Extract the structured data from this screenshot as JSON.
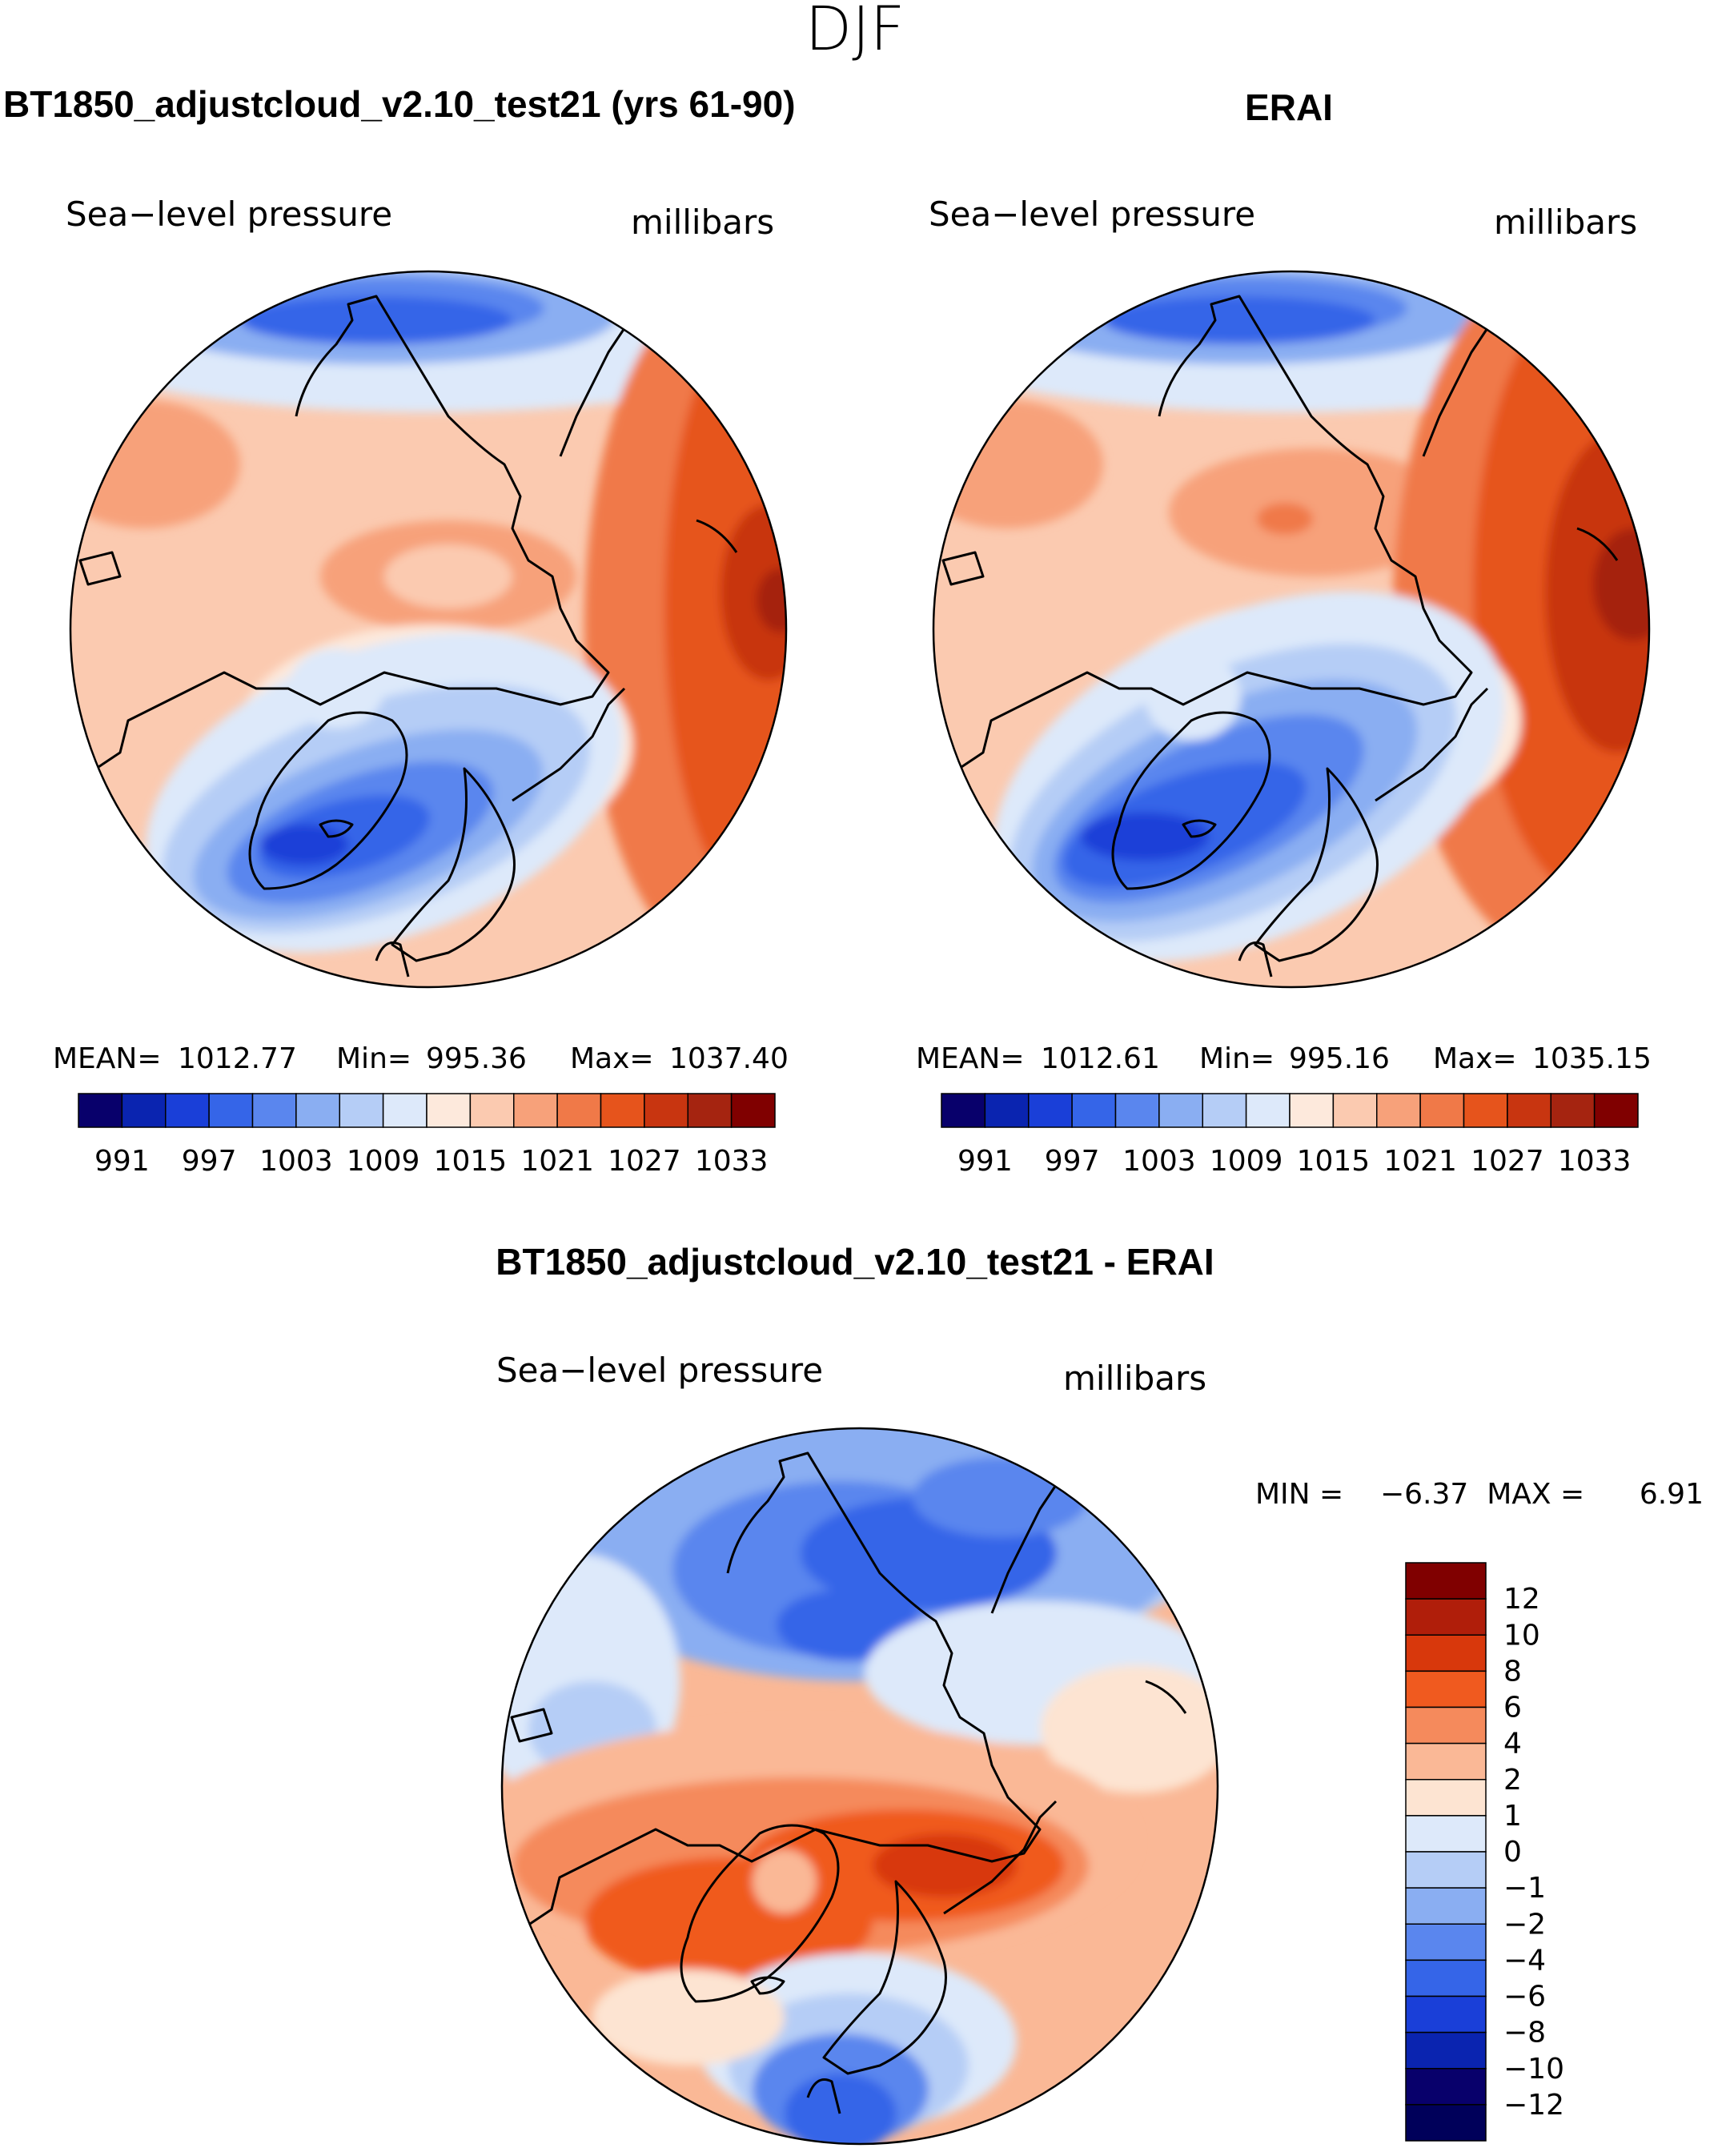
{
  "suptitle": "DJF",
  "panels": [
    {
      "title": "BT1850_adjustcloud_v2.10_test21 (yrs 61-90)",
      "left_label": "Sea−level pressure",
      "right_label": "millibars",
      "stats": {
        "mean_label": "MEAN=",
        "mean": "1012.77",
        "min_label": "Min=",
        "min": "995.36",
        "max_label": "Max=",
        "max": "1037.40"
      }
    },
    {
      "title": "ERAI",
      "left_label": "Sea−level pressure",
      "right_label": "millibars",
      "stats": {
        "mean_label": "MEAN=",
        "mean": "1012.61",
        "min_label": "Min=",
        "min": "995.16",
        "max_label": "Max=",
        "max": "1035.15"
      }
    },
    {
      "title": "BT1850_adjustcloud_v2.10_test21 - ERAI",
      "left_label": "Sea−level pressure",
      "right_label": "millibars",
      "stats_text": "MIN =    −6.37  MAX =      6.91"
    }
  ],
  "chart_data": [
    {
      "type": "heatmap",
      "projection": "north-polar-stereographic",
      "variable": "Sea-level pressure",
      "units": "millibars",
      "title": "BT1850_adjustcloud_v2.10_test21 (yrs 61-90)",
      "colorbar_ticks": [
        "991",
        "997",
        "1003",
        "1009",
        "1015",
        "1021",
        "1027",
        "1033"
      ],
      "colorbar_colors": [
        "#08006b",
        "#0a24b0",
        "#1a3fd8",
        "#3565e8",
        "#5a86ee",
        "#8aaef2",
        "#b5cdf6",
        "#dde9fa",
        "#fde9dc",
        "#fbcab0",
        "#f7a17a",
        "#f07948",
        "#e6541c",
        "#c83510",
        "#a52410",
        "#800000"
      ],
      "mean": 1012.77,
      "min": 995.36,
      "max": 1037.4
    },
    {
      "type": "heatmap",
      "projection": "north-polar-stereographic",
      "variable": "Sea-level pressure",
      "units": "millibars",
      "title": "ERAI",
      "colorbar_ticks": [
        "991",
        "997",
        "1003",
        "1009",
        "1015",
        "1021",
        "1027",
        "1033"
      ],
      "colorbar_colors": [
        "#08006b",
        "#0a24b0",
        "#1a3fd8",
        "#3565e8",
        "#5a86ee",
        "#8aaef2",
        "#b5cdf6",
        "#dde9fa",
        "#fde9dc",
        "#fbcab0",
        "#f7a17a",
        "#f07948",
        "#e6541c",
        "#c83510",
        "#a52410",
        "#800000"
      ],
      "mean": 1012.61,
      "min": 995.16,
      "max": 1035.15
    },
    {
      "type": "heatmap",
      "projection": "north-polar-stereographic",
      "variable": "Sea-level pressure difference",
      "units": "millibars",
      "title": "BT1850_adjustcloud_v2.10_test21 - ERAI",
      "colorbar_levels": [
        "12",
        "10",
        "8",
        "6",
        "4",
        "2",
        "1",
        "0",
        "−1",
        "−2",
        "−4",
        "−6",
        "−8",
        "−10",
        "−12"
      ],
      "colorbar_colors": [
        "#800000",
        "#b01e0a",
        "#d8380c",
        "#f05a1f",
        "#f58a5c",
        "#fab896",
        "#fde4d2",
        "#dde9fa",
        "#b5cdf6",
        "#8aaef2",
        "#5a86ee",
        "#3565e8",
        "#1a3fd8",
        "#0a24b0",
        "#08006b",
        "#00005a"
      ],
      "min": -6.37,
      "max": 6.91
    }
  ],
  "colors": {
    "coastline": "#000000",
    "text": "#000000",
    "background": "#ffffff"
  }
}
